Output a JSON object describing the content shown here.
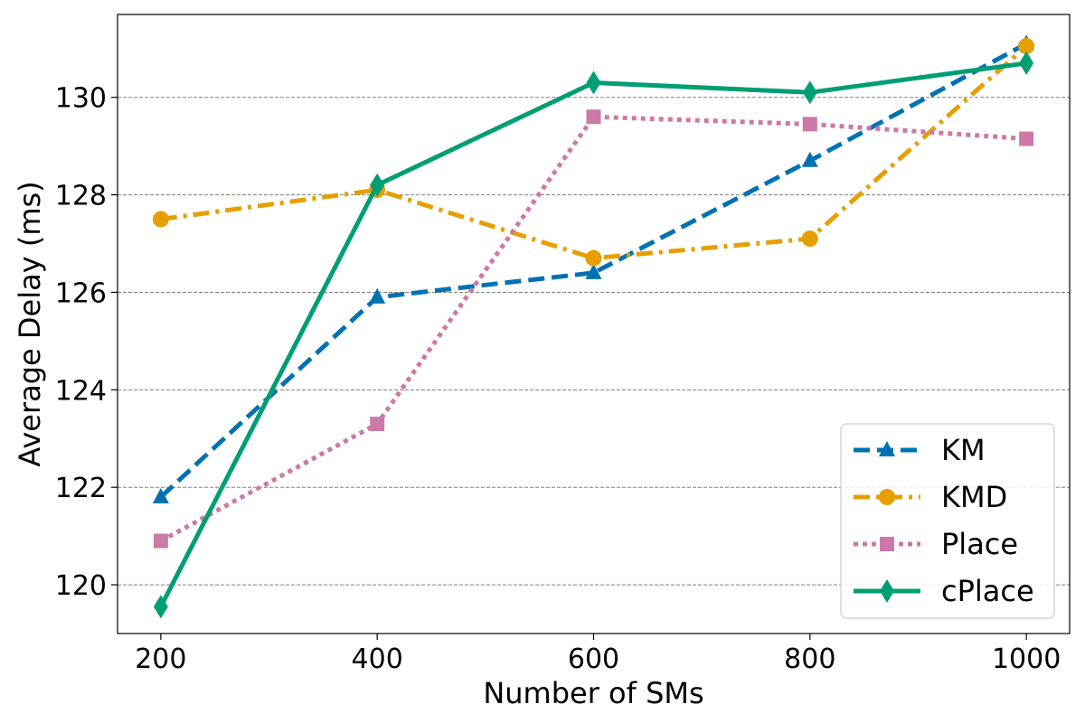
{
  "chart_data": {
    "type": "line",
    "xlabel": "Number of SMs",
    "ylabel": "Average Delay (ms)",
    "x": [
      200,
      400,
      600,
      800,
      1000
    ],
    "xlim": [
      160,
      1040
    ],
    "ylim": [
      119.0,
      131.7
    ],
    "xticks": [
      200,
      400,
      600,
      800,
      1000
    ],
    "yticks": [
      120,
      122,
      124,
      126,
      128,
      130
    ],
    "grid": "horizontal dashed",
    "legend_position": "lower-right",
    "series": [
      {
        "name": "KM",
        "color": "#0072b2",
        "line": "dashed",
        "marker": "triangle",
        "values": [
          121.8,
          125.9,
          126.4,
          128.7,
          131.1
        ]
      },
      {
        "name": "KMD",
        "color": "#e69f00",
        "line": "dash-dot",
        "marker": "circle",
        "values": [
          127.5,
          128.1,
          126.7,
          127.1,
          131.05
        ]
      },
      {
        "name": "Place",
        "color": "#cc79a7",
        "line": "dotted",
        "marker": "square",
        "values": [
          120.9,
          123.3,
          129.6,
          129.45,
          129.15
        ]
      },
      {
        "name": "cPlace",
        "color": "#009e73",
        "line": "solid",
        "marker": "diamond",
        "values": [
          119.55,
          128.2,
          130.3,
          130.1,
          130.7
        ]
      }
    ]
  }
}
